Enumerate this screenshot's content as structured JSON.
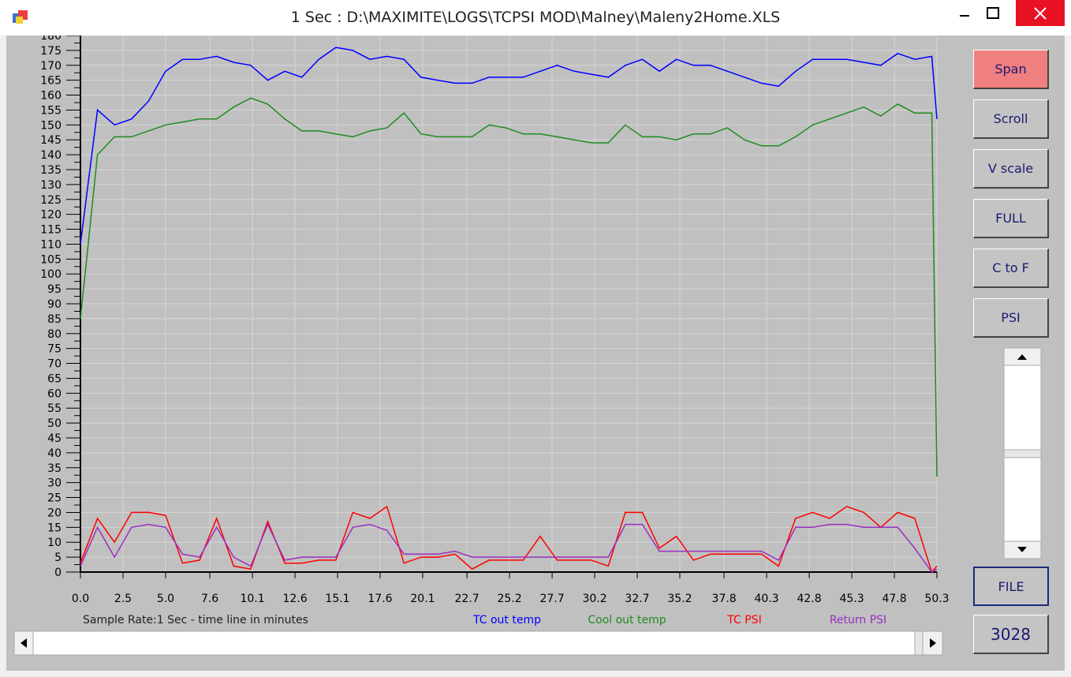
{
  "chart_data": {
    "type": "line",
    "title": "1 Sec : D:\\MAXIMITE\\LOGS\\TCPSI MOD\\Malney\\Maleny2Home.XLS",
    "xlabel": "Sample Rate:1 Sec - time line in minutes",
    "x": [
      0,
      1,
      2,
      3,
      4,
      5,
      6,
      7,
      8,
      9,
      10,
      11,
      12,
      13,
      14,
      15,
      16,
      17,
      18,
      19,
      20,
      21,
      22,
      23,
      24,
      25,
      26,
      27,
      28,
      29,
      30,
      31,
      32,
      33,
      34,
      35,
      36,
      37,
      38,
      39,
      40,
      41,
      42,
      43,
      44,
      45,
      46,
      47,
      48,
      49,
      50,
      50.3
    ],
    "series": [
      {
        "name": "TC out temp",
        "color": "#0000ff",
        "values": [
          110,
          155,
          150,
          152,
          158,
          168,
          172,
          172,
          173,
          171,
          170,
          165,
          168,
          166,
          172,
          176,
          175,
          172,
          173,
          172,
          166,
          165,
          164,
          164,
          166,
          166,
          166,
          168,
          170,
          168,
          167,
          166,
          170,
          172,
          168,
          172,
          170,
          170,
          168,
          166,
          164,
          163,
          168,
          172,
          172,
          172,
          171,
          170,
          174,
          172,
          173,
          152
        ]
      },
      {
        "name": "Cool out temp",
        "color": "#1e8c1e",
        "values": [
          85,
          140,
          146,
          146,
          148,
          150,
          151,
          152,
          152,
          156,
          159,
          157,
          152,
          148,
          148,
          147,
          146,
          148,
          149,
          154,
          147,
          146,
          146,
          146,
          150,
          149,
          147,
          147,
          146,
          145,
          144,
          144,
          150,
          146,
          146,
          145,
          147,
          147,
          149,
          145,
          143,
          143,
          146,
          150,
          152,
          154,
          156,
          153,
          157,
          154,
          154,
          32
        ]
      },
      {
        "name": "TC PSI",
        "color": "#ff0000",
        "values": [
          3,
          18,
          10,
          20,
          20,
          19,
          3,
          4,
          18,
          2,
          1,
          17,
          3,
          3,
          4,
          4,
          20,
          18,
          22,
          3,
          5,
          5,
          6,
          1,
          4,
          4,
          4,
          12,
          4,
          4,
          4,
          2,
          20,
          20,
          8,
          12,
          4,
          6,
          6,
          6,
          6,
          2,
          18,
          20,
          18,
          22,
          20,
          15,
          20,
          18,
          0,
          2
        ]
      },
      {
        "name": "Return PSI",
        "color": "#9a2fc0",
        "values": [
          2,
          15,
          5,
          15,
          16,
          15,
          6,
          5,
          15,
          5,
          2,
          16,
          4,
          5,
          5,
          5,
          15,
          16,
          14,
          6,
          6,
          6,
          7,
          5,
          5,
          5,
          5,
          5,
          5,
          5,
          5,
          5,
          16,
          16,
          7,
          7,
          7,
          7,
          7,
          7,
          7,
          4,
          15,
          15,
          16,
          16,
          15,
          15,
          15,
          8,
          0,
          1
        ]
      }
    ],
    "xlim": [
      0,
      50.3
    ],
    "ylim": [
      0,
      180
    ],
    "xticks": [
      {
        "value": 0,
        "label": "0.0"
      },
      2.5,
      {
        "value": 5,
        "label": "5.0"
      },
      7.6,
      10.1,
      12.6,
      15.1,
      17.6,
      20.1,
      22.7,
      25.2,
      27.7,
      30.2,
      32.7,
      35.2,
      37.8,
      40.3,
      42.8,
      45.3,
      47.8,
      50.3
    ],
    "yticks": [
      0,
      5,
      10,
      15,
      20,
      25,
      30,
      35,
      40,
      45,
      50,
      55,
      60,
      65,
      70,
      75,
      80,
      85,
      90,
      95,
      100,
      105,
      110,
      115,
      120,
      125,
      130,
      135,
      140,
      145,
      150,
      155,
      160,
      165,
      170,
      175,
      180
    ],
    "grid": true,
    "legend": "bottom"
  },
  "ui": {
    "buttons": [
      "Span",
      "Scroll",
      "V scale",
      "FULL",
      "C to F",
      "PSI"
    ],
    "file_button": "FILE",
    "counter": 3028
  }
}
